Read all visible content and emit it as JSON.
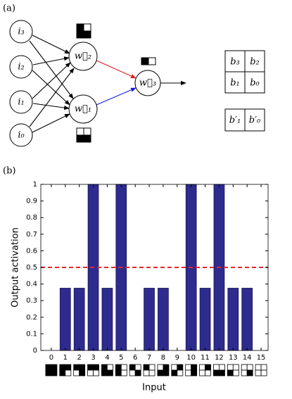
{
  "figure": {
    "panel_a": {
      "label": "(a)",
      "nodes": [
        "i₃",
        "i₂",
        "i₁",
        "i₀",
        "w⃗₂",
        "w⃗₁",
        "w⃗₃"
      ],
      "bits_top": [
        "b₃",
        "b₂",
        "b₁",
        "b₀"
      ],
      "bits_bottom": [
        "b′₁",
        "b′₀"
      ]
    },
    "panel_b": {
      "label": "(b)"
    }
  },
  "chart_data": {
    "type": "bar",
    "x": [
      0,
      1,
      2,
      3,
      4,
      5,
      6,
      7,
      8,
      9,
      10,
      11,
      12,
      13,
      14,
      15
    ],
    "values": [
      0,
      0.375,
      0.375,
      1,
      0.375,
      1,
      0,
      0.375,
      0.375,
      0,
      1,
      0.375,
      1,
      0.375,
      0.375,
      0
    ],
    "color": "#2e2b8f",
    "xlim": [
      -0.75,
      15.5
    ],
    "xticks": [
      0,
      1,
      2,
      3,
      4,
      5,
      6,
      7,
      8,
      9,
      10,
      11,
      12,
      13,
      14,
      15
    ],
    "ylim": [
      0,
      1
    ],
    "yticks": [
      0,
      0.1,
      0.2,
      0.3,
      0.4,
      0.5,
      0.6,
      0.7,
      0.8,
      0.9,
      1
    ],
    "threshold": 0.5,
    "threshold_color": "#e8262a",
    "xlabel": "Input",
    "ylabel": "Output activation"
  }
}
